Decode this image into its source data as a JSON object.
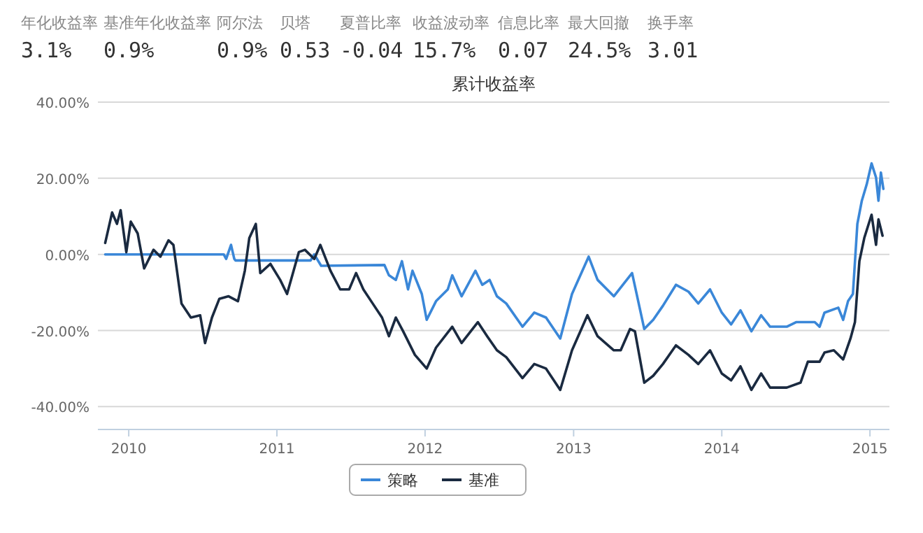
{
  "chart_data": [
    {
      "type": "other",
      "categories": [
        "年化收益率",
        "基准年化收益率",
        "阿尔法",
        "贝塔",
        "夏普比率",
        "收益波动率",
        "信息比率",
        "最大回撤",
        "换手率"
      ],
      "value_labels": [
        "3.1%",
        "0.9%",
        "0.9%",
        "0.53",
        "-0.04",
        "15.7%",
        "0.07",
        "24.5%",
        "3.01"
      ]
    },
    {
      "type": "line",
      "title": "累计收益率",
      "grid": "y",
      "legend": "bottom",
      "xlim": [
        "2009-10-17",
        "2015-02-18"
      ],
      "xticks": [
        {
          "value": "2010-01-01",
          "label": "2010"
        },
        {
          "value": "2011-01-01",
          "label": "2011"
        },
        {
          "value": "2012-01-01",
          "label": "2012"
        },
        {
          "value": "2013-01-01",
          "label": "2013"
        },
        {
          "value": "2014-01-01",
          "label": "2014"
        },
        {
          "value": "2015-01-01",
          "label": "2015"
        }
      ],
      "ylim": [
        -46,
        40
      ],
      "yticks": [
        {
          "value": -40,
          "label": "-40.00%"
        },
        {
          "value": -20,
          "label": "-20.00%"
        },
        {
          "value": 0,
          "label": "0.00%"
        },
        {
          "value": 20,
          "label": "20.00%"
        },
        {
          "value": 40,
          "label": "40.00%"
        }
      ],
      "series": [
        {
          "name": "策略",
          "color": "#3a87d8",
          "x": [
            "2009-11-04",
            "2010-08-23",
            "2010-08-29",
            "2010-09-10",
            "2010-09-18",
            "2010-09-21",
            "2011-03-25",
            "2011-04-03",
            "2011-04-20",
            "2011-09-23",
            "2011-10-04",
            "2011-10-21",
            "2011-11-05",
            "2011-11-20",
            "2011-12-01",
            "2011-12-24",
            "2012-01-05",
            "2012-01-28",
            "2012-02-26",
            "2012-03-08",
            "2012-03-31",
            "2012-05-04",
            "2012-05-21",
            "2012-06-08",
            "2012-06-26",
            "2012-07-19",
            "2012-08-28",
            "2012-09-26",
            "2012-10-25",
            "2012-11-29",
            "2012-12-28",
            "2013-02-07",
            "2013-03-01",
            "2013-04-10",
            "2013-05-25",
            "2013-06-24",
            "2013-07-16",
            "2013-08-09",
            "2013-09-10",
            "2013-10-11",
            "2013-11-04",
            "2013-12-03",
            "2014-01-01",
            "2014-01-24",
            "2014-02-16",
            "2014-03-15",
            "2014-04-08",
            "2014-04-30",
            "2014-06-10",
            "2014-07-03",
            "2014-08-18",
            "2014-08-30",
            "2014-09-11",
            "2014-10-15",
            "2014-10-27",
            "2014-11-08",
            "2014-11-20",
            "2014-12-01",
            "2014-12-12",
            "2014-12-24",
            "2015-01-05",
            "2015-01-16",
            "2015-01-22",
            "2015-01-28",
            "2015-02-03"
          ],
          "values": [
            0,
            0,
            -1.2,
            2.5,
            -1.2,
            -1.6,
            -1.6,
            0,
            -3,
            -2.8,
            -5.5,
            -6.7,
            -1.8,
            -9.2,
            -4.3,
            -10.4,
            -17.2,
            -12.3,
            -9.2,
            -5.5,
            -11,
            -4.3,
            -8,
            -6.7,
            -11,
            -12.9,
            -19,
            -15.3,
            -16.6,
            -22.1,
            -10.4,
            -0.6,
            -6.7,
            -11,
            -4.9,
            -19.6,
            -17.2,
            -13.5,
            -8,
            -9.8,
            -12.9,
            -9.2,
            -15.3,
            -18.4,
            -14.7,
            -20.2,
            -16,
            -19,
            -19,
            -17.8,
            -17.8,
            -19,
            -15.3,
            -14,
            -17.2,
            -12.3,
            -10.4,
            8,
            14.1,
            18.4,
            23.9,
            20.2,
            14.1,
            21.5,
            17.2
          ]
        },
        {
          "name": "基准",
          "color": "#1a2a40",
          "x": [
            "2009-11-04",
            "2009-11-21",
            "2009-12-03",
            "2009-12-12",
            "2009-12-26",
            "2010-01-06",
            "2010-01-23",
            "2010-02-08",
            "2010-03-03",
            "2010-03-20",
            "2010-04-09",
            "2010-04-21",
            "2010-05-11",
            "2010-06-03",
            "2010-06-26",
            "2010-07-08",
            "2010-07-25",
            "2010-08-12",
            "2010-09-04",
            "2010-09-27",
            "2010-10-14",
            "2010-10-25",
            "2010-11-10",
            "2010-11-21",
            "2010-12-16",
            "2011-01-09",
            "2011-01-26",
            "2011-02-24",
            "2011-03-11",
            "2011-04-03",
            "2011-04-18",
            "2011-05-13",
            "2011-06-06",
            "2011-06-28",
            "2011-07-15",
            "2011-08-02",
            "2011-08-25",
            "2011-09-17",
            "2011-10-04",
            "2011-10-21",
            "2011-11-08",
            "2011-12-07",
            "2012-01-05",
            "2012-01-28",
            "2012-03-08",
            "2012-03-31",
            "2012-05-10",
            "2012-06-02",
            "2012-06-26",
            "2012-07-19",
            "2012-08-28",
            "2012-09-26",
            "2012-10-25",
            "2012-11-29",
            "2012-12-28",
            "2013-02-04",
            "2013-03-01",
            "2013-04-10",
            "2013-04-27",
            "2013-05-20",
            "2013-06-01",
            "2013-06-24",
            "2013-07-16",
            "2013-08-09",
            "2013-09-10",
            "2013-10-11",
            "2013-11-04",
            "2013-12-03",
            "2014-01-01",
            "2014-01-24",
            "2014-02-16",
            "2014-03-15",
            "2014-04-08",
            "2014-04-30",
            "2014-06-10",
            "2014-07-14",
            "2014-08-01",
            "2014-08-30",
            "2014-09-11",
            "2014-10-04",
            "2014-10-27",
            "2014-11-14",
            "2014-11-25",
            "2014-12-06",
            "2014-12-18",
            "2015-01-05",
            "2015-01-16",
            "2015-01-22",
            "2015-02-01"
          ],
          "values": [
            3,
            11,
            8,
            11.6,
            0.6,
            8.6,
            5.5,
            -3.7,
            1.2,
            -0.6,
            3.7,
            2.5,
            -12.9,
            -16.6,
            -16,
            -23.3,
            -16.6,
            -11.7,
            -11,
            -12.3,
            -4.3,
            4.3,
            8,
            -4.9,
            -2.5,
            -6.7,
            -10.4,
            0.6,
            1.2,
            -1.2,
            2.5,
            -4.3,
            -9.2,
            -9.2,
            -4.9,
            -9.2,
            -12.9,
            -16.6,
            -21.5,
            -16.6,
            -20.2,
            -26.4,
            -30,
            -24.5,
            -19,
            -23.3,
            -17.8,
            -21.5,
            -25.2,
            -27,
            -32.5,
            -28.8,
            -30,
            -35.6,
            -25.2,
            -16,
            -21.5,
            -25.2,
            -25.2,
            -19.6,
            -20.2,
            -33.7,
            -31.9,
            -28.8,
            -23.9,
            -26.4,
            -28.8,
            -25.2,
            -31.3,
            -33.1,
            -29.4,
            -35.6,
            -31.3,
            -35,
            -35,
            -33.7,
            -28.2,
            -28.2,
            -25.8,
            -25.2,
            -27.6,
            -22.1,
            -17.8,
            -1.8,
            4.3,
            10.4,
            2.5,
            9.2,
            4.9
          ]
        }
      ]
    }
  ]
}
